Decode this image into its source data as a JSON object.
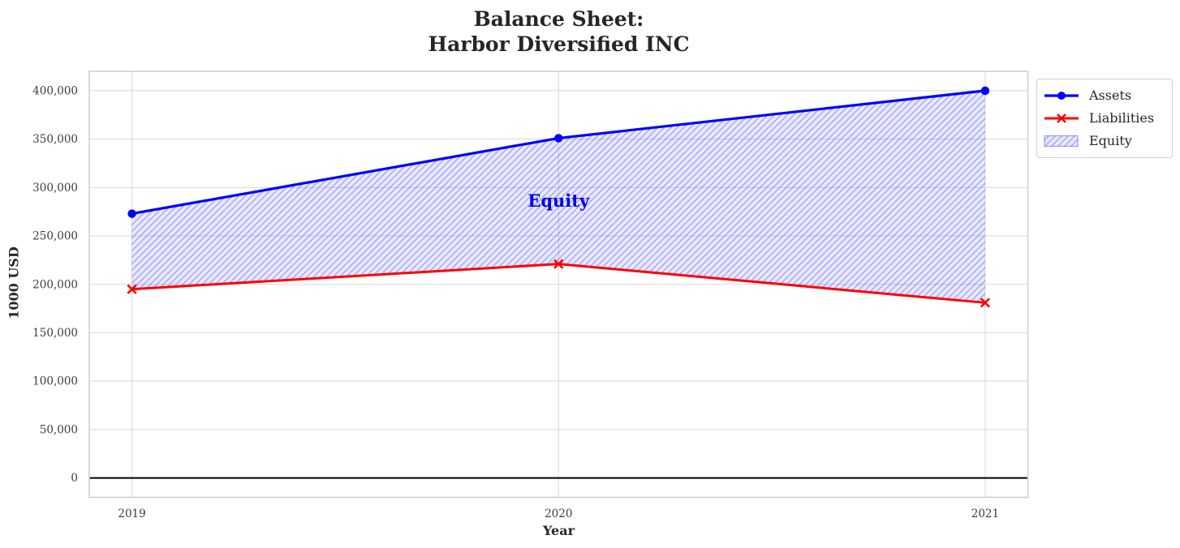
{
  "title": {
    "line1": "Balance Sheet:",
    "line2": "Harbor Diversified INC"
  },
  "axes": {
    "xlabel": "Year",
    "ylabel": "1000 USD"
  },
  "legend": {
    "position": "upper-right-outside",
    "entries": [
      {
        "label": "Assets",
        "marker": "circle-on-line"
      },
      {
        "label": "Liabilities",
        "marker": "x-on-line"
      },
      {
        "label": "Equity",
        "marker": "hatched-patch"
      }
    ]
  },
  "annotation": {
    "text": "Equity"
  },
  "colors": {
    "assets": "#0000ff",
    "liabilities": "#ff0000",
    "equity_fill_base": "#0000ff",
    "equity_fill_opacity": 0.085,
    "equity_hatch_opacity": 0.3,
    "grid": "#d9d9d9",
    "spine": "#cccccc",
    "tick_text": "#3b3b3b",
    "zero_line": "#000000",
    "annotation_text": "#0000ee"
  },
  "chart_data": {
    "type": "line",
    "title": "Balance Sheet: Harbor Diversified INC",
    "x": [
      2019,
      2020,
      2021
    ],
    "series": [
      {
        "name": "Assets",
        "values": [
          273000,
          351000,
          400000
        ],
        "color": "#0000ff",
        "marker": "circle"
      },
      {
        "name": "Liabilities",
        "values": [
          195000,
          221000,
          181000
        ],
        "color": "#ff0000",
        "marker": "x"
      },
      {
        "name": "Equity",
        "render": "area-between-assets-and-liabilities",
        "values": [
          78000,
          130000,
          219000
        ],
        "hatch": "//"
      }
    ],
    "xlabel": "Year",
    "ylabel": "1000 USD",
    "xlim": [
      2018.9,
      2021.1
    ],
    "ylim": [
      -20000,
      420000
    ],
    "xticks": [
      {
        "v": 2019,
        "label": "2019"
      },
      {
        "v": 2020,
        "label": "2020"
      },
      {
        "v": 2021,
        "label": "2021"
      }
    ],
    "yticks": [
      {
        "v": 0,
        "label": "0"
      },
      {
        "v": 50000,
        "label": "50,000"
      },
      {
        "v": 100000,
        "label": "100,000"
      },
      {
        "v": 150000,
        "label": "150,000"
      },
      {
        "v": 200000,
        "label": "200,000"
      },
      {
        "v": 250000,
        "label": "250,000"
      },
      {
        "v": 300000,
        "label": "300,000"
      },
      {
        "v": 350000,
        "label": "350,000"
      },
      {
        "v": 400000,
        "label": "400,000"
      }
    ],
    "grid": true,
    "zero_baseline": 0,
    "legend_position": "outside upper right",
    "annotations": [
      {
        "text": "Equity",
        "x": 2020,
        "y": 287000
      }
    ]
  }
}
